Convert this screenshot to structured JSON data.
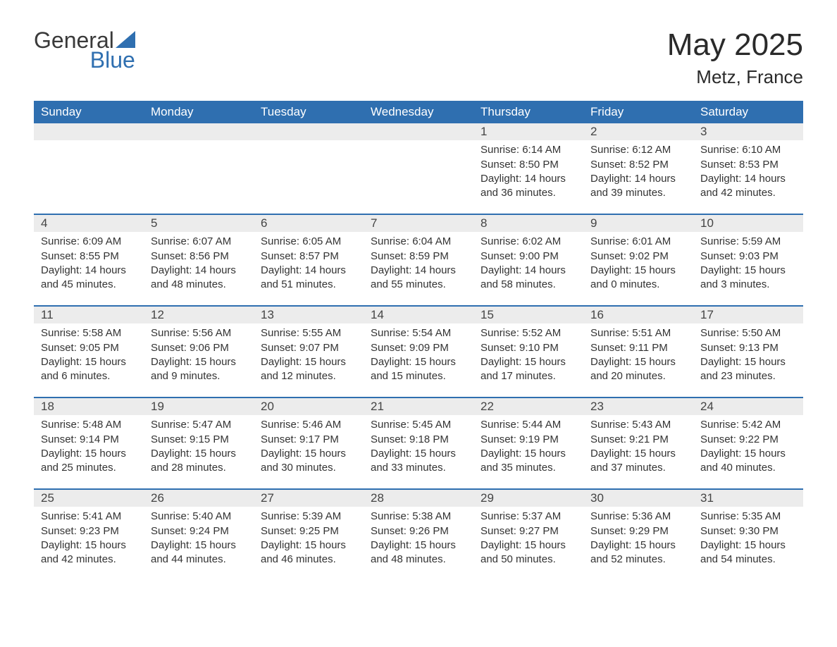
{
  "brand": {
    "name_part1": "General",
    "name_part2": "Blue",
    "icon_color": "#2f6fb0",
    "text_color_main": "#3a3a3a",
    "text_color_accent": "#2f6fb0"
  },
  "title": {
    "month_year": "May 2025",
    "location": "Metz, France",
    "title_fontsize": 44,
    "location_fontsize": 26,
    "text_color": "#2a2a2a"
  },
  "calendar": {
    "type": "table",
    "header_bg": "#2f6fb0",
    "header_text_color": "#ffffff",
    "row_divider_color": "#2f6fb0",
    "daynum_bg": "#ececec",
    "body_text_color": "#333333",
    "body_fontsize": 15,
    "header_fontsize": 17,
    "weekdays": [
      "Sunday",
      "Monday",
      "Tuesday",
      "Wednesday",
      "Thursday",
      "Friday",
      "Saturday"
    ],
    "weeks": [
      [
        null,
        null,
        null,
        null,
        {
          "n": "1",
          "sunrise": "Sunrise: 6:14 AM",
          "sunset": "Sunset: 8:50 PM",
          "daylight": "Daylight: 14 hours and 36 minutes."
        },
        {
          "n": "2",
          "sunrise": "Sunrise: 6:12 AM",
          "sunset": "Sunset: 8:52 PM",
          "daylight": "Daylight: 14 hours and 39 minutes."
        },
        {
          "n": "3",
          "sunrise": "Sunrise: 6:10 AM",
          "sunset": "Sunset: 8:53 PM",
          "daylight": "Daylight: 14 hours and 42 minutes."
        }
      ],
      [
        {
          "n": "4",
          "sunrise": "Sunrise: 6:09 AM",
          "sunset": "Sunset: 8:55 PM",
          "daylight": "Daylight: 14 hours and 45 minutes."
        },
        {
          "n": "5",
          "sunrise": "Sunrise: 6:07 AM",
          "sunset": "Sunset: 8:56 PM",
          "daylight": "Daylight: 14 hours and 48 minutes."
        },
        {
          "n": "6",
          "sunrise": "Sunrise: 6:05 AM",
          "sunset": "Sunset: 8:57 PM",
          "daylight": "Daylight: 14 hours and 51 minutes."
        },
        {
          "n": "7",
          "sunrise": "Sunrise: 6:04 AM",
          "sunset": "Sunset: 8:59 PM",
          "daylight": "Daylight: 14 hours and 55 minutes."
        },
        {
          "n": "8",
          "sunrise": "Sunrise: 6:02 AM",
          "sunset": "Sunset: 9:00 PM",
          "daylight": "Daylight: 14 hours and 58 minutes."
        },
        {
          "n": "9",
          "sunrise": "Sunrise: 6:01 AM",
          "sunset": "Sunset: 9:02 PM",
          "daylight": "Daylight: 15 hours and 0 minutes."
        },
        {
          "n": "10",
          "sunrise": "Sunrise: 5:59 AM",
          "sunset": "Sunset: 9:03 PM",
          "daylight": "Daylight: 15 hours and 3 minutes."
        }
      ],
      [
        {
          "n": "11",
          "sunrise": "Sunrise: 5:58 AM",
          "sunset": "Sunset: 9:05 PM",
          "daylight": "Daylight: 15 hours and 6 minutes."
        },
        {
          "n": "12",
          "sunrise": "Sunrise: 5:56 AM",
          "sunset": "Sunset: 9:06 PM",
          "daylight": "Daylight: 15 hours and 9 minutes."
        },
        {
          "n": "13",
          "sunrise": "Sunrise: 5:55 AM",
          "sunset": "Sunset: 9:07 PM",
          "daylight": "Daylight: 15 hours and 12 minutes."
        },
        {
          "n": "14",
          "sunrise": "Sunrise: 5:54 AM",
          "sunset": "Sunset: 9:09 PM",
          "daylight": "Daylight: 15 hours and 15 minutes."
        },
        {
          "n": "15",
          "sunrise": "Sunrise: 5:52 AM",
          "sunset": "Sunset: 9:10 PM",
          "daylight": "Daylight: 15 hours and 17 minutes."
        },
        {
          "n": "16",
          "sunrise": "Sunrise: 5:51 AM",
          "sunset": "Sunset: 9:11 PM",
          "daylight": "Daylight: 15 hours and 20 minutes."
        },
        {
          "n": "17",
          "sunrise": "Sunrise: 5:50 AM",
          "sunset": "Sunset: 9:13 PM",
          "daylight": "Daylight: 15 hours and 23 minutes."
        }
      ],
      [
        {
          "n": "18",
          "sunrise": "Sunrise: 5:48 AM",
          "sunset": "Sunset: 9:14 PM",
          "daylight": "Daylight: 15 hours and 25 minutes."
        },
        {
          "n": "19",
          "sunrise": "Sunrise: 5:47 AM",
          "sunset": "Sunset: 9:15 PM",
          "daylight": "Daylight: 15 hours and 28 minutes."
        },
        {
          "n": "20",
          "sunrise": "Sunrise: 5:46 AM",
          "sunset": "Sunset: 9:17 PM",
          "daylight": "Daylight: 15 hours and 30 minutes."
        },
        {
          "n": "21",
          "sunrise": "Sunrise: 5:45 AM",
          "sunset": "Sunset: 9:18 PM",
          "daylight": "Daylight: 15 hours and 33 minutes."
        },
        {
          "n": "22",
          "sunrise": "Sunrise: 5:44 AM",
          "sunset": "Sunset: 9:19 PM",
          "daylight": "Daylight: 15 hours and 35 minutes."
        },
        {
          "n": "23",
          "sunrise": "Sunrise: 5:43 AM",
          "sunset": "Sunset: 9:21 PM",
          "daylight": "Daylight: 15 hours and 37 minutes."
        },
        {
          "n": "24",
          "sunrise": "Sunrise: 5:42 AM",
          "sunset": "Sunset: 9:22 PM",
          "daylight": "Daylight: 15 hours and 40 minutes."
        }
      ],
      [
        {
          "n": "25",
          "sunrise": "Sunrise: 5:41 AM",
          "sunset": "Sunset: 9:23 PM",
          "daylight": "Daylight: 15 hours and 42 minutes."
        },
        {
          "n": "26",
          "sunrise": "Sunrise: 5:40 AM",
          "sunset": "Sunset: 9:24 PM",
          "daylight": "Daylight: 15 hours and 44 minutes."
        },
        {
          "n": "27",
          "sunrise": "Sunrise: 5:39 AM",
          "sunset": "Sunset: 9:25 PM",
          "daylight": "Daylight: 15 hours and 46 minutes."
        },
        {
          "n": "28",
          "sunrise": "Sunrise: 5:38 AM",
          "sunset": "Sunset: 9:26 PM",
          "daylight": "Daylight: 15 hours and 48 minutes."
        },
        {
          "n": "29",
          "sunrise": "Sunrise: 5:37 AM",
          "sunset": "Sunset: 9:27 PM",
          "daylight": "Daylight: 15 hours and 50 minutes."
        },
        {
          "n": "30",
          "sunrise": "Sunrise: 5:36 AM",
          "sunset": "Sunset: 9:29 PM",
          "daylight": "Daylight: 15 hours and 52 minutes."
        },
        {
          "n": "31",
          "sunrise": "Sunrise: 5:35 AM",
          "sunset": "Sunset: 9:30 PM",
          "daylight": "Daylight: 15 hours and 54 minutes."
        }
      ]
    ]
  }
}
